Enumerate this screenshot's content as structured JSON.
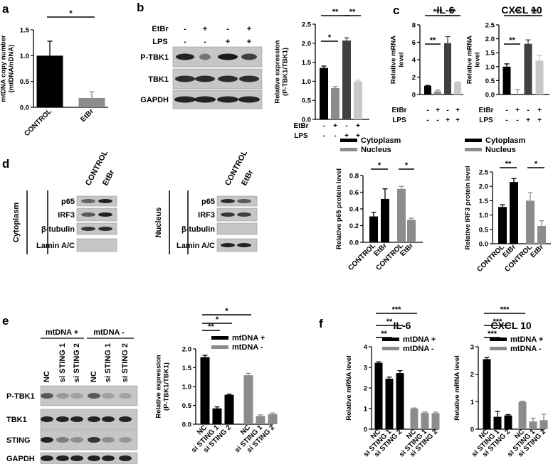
{
  "panels": {
    "a": "a",
    "b": "b",
    "c": "c",
    "d": "d",
    "e": "e",
    "f": "f"
  },
  "blots": {
    "b": {
      "header_rows": [
        {
          "label": "EtBr",
          "signs": [
            "-",
            "+",
            "-",
            "+"
          ]
        },
        {
          "label": "LPS",
          "signs": [
            "-",
            "-",
            "+",
            "+"
          ]
        }
      ],
      "bands": [
        "P-TBK1",
        "TBK1",
        "GAPDH"
      ]
    },
    "d_cyto": {
      "group": "Cytoplasm",
      "lanes": [
        "CONTROL",
        "EtBr"
      ],
      "bands": [
        "p65",
        "IRF3",
        "β-tubulin",
        "Lamin A/C"
      ]
    },
    "d_nuc": {
      "group": "Nucleus",
      "lanes": [
        "CONTROL",
        "EtBr"
      ],
      "bands": [
        "p65",
        "IRF3",
        "β-tubulin",
        "Lamin A/C"
      ]
    },
    "e": {
      "groups": [
        "mtDNA +",
        "mtDNA -"
      ],
      "lanes": [
        "NC",
        "si STING 1",
        "si STING 2",
        "NC",
        "si STING 1",
        "si STING 2"
      ],
      "bands": [
        "P-TBK1",
        "TBK1",
        "STING",
        "GAPDH"
      ]
    }
  },
  "chart_data": [
    {
      "id": "a",
      "type": "bar",
      "ylabel": "mtDNA copy number\n(mtDNA/nDNA)",
      "ylim": [
        0,
        1.5
      ],
      "yticks": [
        "0.0",
        "0.5",
        "1.0",
        "1.5"
      ],
      "categories": [
        "CONTROL",
        "EtBr"
      ],
      "values": [
        1.0,
        0.18
      ],
      "errors": [
        0.28,
        0.12
      ],
      "colors": [
        "#000000",
        "#8c8c8c"
      ],
      "significance": [
        {
          "from": 0,
          "to": 1,
          "label": "*"
        }
      ]
    },
    {
      "id": "b",
      "type": "bar",
      "ylabel": "Relative expression\n(P-TBK1/TBK1)",
      "ylim": [
        0,
        2.5
      ],
      "yticks": [
        "0.0",
        "0.5",
        "1.0",
        "1.5",
        "2.0",
        "2.5"
      ],
      "values": [
        1.35,
        0.82,
        2.07,
        1.0
      ],
      "errors": [
        0.05,
        0.04,
        0.07,
        0.03
      ],
      "colors": [
        "#000000",
        "#8c8c8c",
        "#404040",
        "#c8c8c8"
      ],
      "conditions": [
        {
          "label": "EtBr",
          "signs": [
            "-",
            "+",
            "-",
            "+"
          ]
        },
        {
          "label": "LPS",
          "signs": [
            "-",
            "-",
            "+",
            "+"
          ]
        }
      ],
      "significance": [
        {
          "from": 0,
          "to": 1,
          "label": "*"
        },
        {
          "from": 0,
          "to": 2,
          "label": "**"
        },
        {
          "from": 2,
          "to": 3,
          "label": "**"
        }
      ]
    },
    {
      "id": "c1",
      "type": "bar",
      "title": "IL-6",
      "ylabel": "Relative mRNA\nlevel",
      "ylim": [
        0,
        8
      ],
      "yticks": [
        "0",
        "2",
        "4",
        "6",
        "8"
      ],
      "values": [
        1.0,
        0.35,
        5.9,
        1.4
      ],
      "errors": [
        0.05,
        0.15,
        0.75,
        0.07
      ],
      "colors": [
        "#000000",
        "#8c8c8c",
        "#404040",
        "#c8c8c8"
      ],
      "conditions": [
        {
          "label": "EtBr",
          "signs": [
            "-",
            "+",
            "-",
            "+"
          ]
        },
        {
          "label": "LPS",
          "signs": [
            "-",
            "-",
            "+",
            "+"
          ]
        }
      ],
      "significance": [
        {
          "from": 0,
          "to": 1,
          "label": "**"
        },
        {
          "from": 0,
          "to": 2,
          "label": "***"
        },
        {
          "from": 2,
          "to": 3,
          "label": "**"
        }
      ]
    },
    {
      "id": "c2",
      "type": "bar",
      "title": "CXCL 10",
      "ylabel": "Relative mRNA\nlevel",
      "ylim": [
        0,
        2.5
      ],
      "yticks": [
        "0.0",
        "0.5",
        "1.0",
        "1.5",
        "2.0",
        "2.5"
      ],
      "values": [
        1.0,
        0.0,
        1.82,
        1.22
      ],
      "errors": [
        0.1,
        0.18,
        0.14,
        0.18
      ],
      "colors": [
        "#000000",
        "#8c8c8c",
        "#404040",
        "#c8c8c8"
      ],
      "conditions": [
        {
          "label": "EtBr",
          "signs": [
            "-",
            "+",
            "-",
            "+"
          ]
        },
        {
          "label": "LPS",
          "signs": [
            "-",
            "-",
            "+",
            "+"
          ]
        }
      ],
      "significance": [
        {
          "from": 0,
          "to": 1,
          "label": "**"
        },
        {
          "from": 0,
          "to": 2,
          "label": "**"
        },
        {
          "from": 2,
          "to": 3,
          "label": "**"
        }
      ]
    },
    {
      "id": "d1",
      "type": "bar",
      "ylabel": "Relative p65 protein level",
      "ylim": [
        0,
        0.8
      ],
      "yticks": [
        "0.0",
        "0.2",
        "0.4",
        "0.6",
        "0.8"
      ],
      "categories": [
        "CONTROL",
        "EtBr",
        "CONTROL",
        "EtBr"
      ],
      "values": [
        0.31,
        0.52,
        0.64,
        0.27
      ],
      "errors": [
        0.05,
        0.12,
        0.03,
        0.02
      ],
      "colors": [
        "#000000",
        "#000000",
        "#8c8c8c",
        "#8c8c8c"
      ],
      "legend": [
        {
          "name": "Cytoplasm",
          "color": "#000000"
        },
        {
          "name": "Nucleus",
          "color": "#8c8c8c"
        }
      ],
      "significance": [
        {
          "from": 0,
          "to": 1,
          "label": "*"
        },
        {
          "from": 2,
          "to": 3,
          "label": "*"
        }
      ]
    },
    {
      "id": "d2",
      "type": "bar",
      "ylabel": "Relative IRF3 protein level",
      "ylim": [
        0,
        2.5
      ],
      "yticks": [
        "0.0",
        "0.5",
        "1.0",
        "1.5",
        "2.0",
        "2.5"
      ],
      "categories": [
        "CONTROL",
        "EtBr",
        "CONTROL",
        "EtBr"
      ],
      "values": [
        1.28,
        2.15,
        1.5,
        0.62
      ],
      "errors": [
        0.08,
        0.12,
        0.28,
        0.18
      ],
      "colors": [
        "#000000",
        "#000000",
        "#8c8c8c",
        "#8c8c8c"
      ],
      "legend": [
        {
          "name": "Cytoplasm",
          "color": "#000000"
        },
        {
          "name": "Nucleus",
          "color": "#8c8c8c"
        }
      ],
      "significance": [
        {
          "from": 0,
          "to": 1,
          "label": "**"
        },
        {
          "from": 2,
          "to": 3,
          "label": "*"
        }
      ]
    },
    {
      "id": "e",
      "type": "bar",
      "ylabel": "Relative expression\n(P-TBK1/TBK1)",
      "ylim": [
        0,
        2.0
      ],
      "yticks": [
        "0.0",
        "0.5",
        "1.0",
        "1.5",
        "2.0"
      ],
      "categories": [
        "NC",
        "si STING 1",
        "si STING 2",
        "NC",
        "si STING 1",
        "si STING 2"
      ],
      "values": [
        1.78,
        0.42,
        0.78,
        1.3,
        0.22,
        0.27
      ],
      "errors": [
        0.05,
        0.04,
        0.02,
        0.05,
        0.03,
        0.03
      ],
      "colors": [
        "#000000",
        "#000000",
        "#000000",
        "#8c8c8c",
        "#8c8c8c",
        "#8c8c8c"
      ],
      "legend": [
        {
          "name": "mtDNA +",
          "color": "#000000"
        },
        {
          "name": "mtDNA -",
          "color": "#8c8c8c"
        }
      ],
      "significance": [
        {
          "from": 0,
          "to": 1,
          "label": "**"
        },
        {
          "from": 0,
          "to": 2,
          "label": "*"
        },
        {
          "from": 0,
          "to": 3,
          "label": "*"
        }
      ]
    },
    {
      "id": "f1",
      "type": "bar",
      "title": "IL-6",
      "ylabel": "Relative mRNA level",
      "ylim": [
        0,
        4
      ],
      "yticks": [
        "0",
        "1",
        "2",
        "3",
        "4"
      ],
      "categories": [
        "NC",
        "si STING 1",
        "si STING 2",
        "NC",
        "si STING 1",
        "si STING 2"
      ],
      "values": [
        3.22,
        2.45,
        2.72,
        1.0,
        0.8,
        0.78
      ],
      "errors": [
        0.05,
        0.08,
        0.12,
        0.03,
        0.04,
        0.05
      ],
      "colors": [
        "#000000",
        "#000000",
        "#000000",
        "#8c8c8c",
        "#8c8c8c",
        "#8c8c8c"
      ],
      "legend": [
        {
          "name": "mtDNA +",
          "color": "#000000"
        },
        {
          "name": "mtDNA -",
          "color": "#8c8c8c"
        }
      ],
      "significance": [
        {
          "from": 0,
          "to": 1,
          "label": "**"
        },
        {
          "from": 0,
          "to": 2,
          "label": "**"
        },
        {
          "from": 0,
          "to": 3,
          "label": "***"
        }
      ]
    },
    {
      "id": "f2",
      "type": "bar",
      "title": "CXCL 10",
      "ylabel": "Relative mRNA level",
      "ylim": [
        0,
        3
      ],
      "yticks": [
        "0",
        "1",
        "2",
        "3"
      ],
      "categories": [
        "NC",
        "si STING 1",
        "si STING 2",
        "NC",
        "si STING 1",
        "si STING 2"
      ],
      "values": [
        2.55,
        0.45,
        0.5,
        1.0,
        0.28,
        0.33
      ],
      "errors": [
        0.06,
        0.2,
        0.03,
        0.02,
        0.12,
        0.22
      ],
      "colors": [
        "#000000",
        "#000000",
        "#000000",
        "#8c8c8c",
        "#8c8c8c",
        "#8c8c8c"
      ],
      "legend": [
        {
          "name": "mtDNA +",
          "color": "#000000"
        },
        {
          "name": "mtDNA -",
          "color": "#8c8c8c"
        }
      ],
      "significance": [
        {
          "from": 0,
          "to": 1,
          "label": "***"
        },
        {
          "from": 0,
          "to": 2,
          "label": "***"
        },
        {
          "from": 0,
          "to": 3,
          "label": "***"
        }
      ]
    }
  ]
}
